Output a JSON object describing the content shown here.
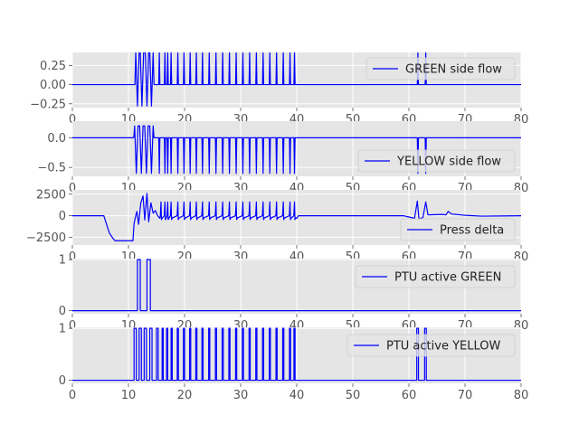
{
  "chart_data": [
    {
      "type": "line",
      "legend_position": "upper-right",
      "grid": true,
      "xlim": [
        0,
        80
      ],
      "ylim": [
        -0.3,
        0.42
      ],
      "xticks": [
        0,
        10,
        20,
        30,
        40,
        50,
        60,
        70,
        80
      ],
      "yticks": [
        0.25,
        0.0,
        -0.25
      ],
      "ytick_labels": [
        "0.25",
        "0.00",
        "−0.25"
      ],
      "series": [
        {
          "name": "GREEN side flow",
          "color": "#0000ff",
          "baseline": 0.0,
          "bursts": [
            {
              "center": 11.6,
              "low": -0.28,
              "high": 0.42
            },
            {
              "center": 12.4,
              "low": -0.28,
              "high": 0.42
            },
            {
              "center": 13.3,
              "low": -0.28,
              "high": 0.42
            },
            {
              "center": 14.1,
              "low": -0.28,
              "high": 0.42
            }
          ],
          "spike_times": [
            15.5,
            16.5,
            17.0,
            17.6,
            18.8,
            19.9,
            21.0,
            22.1,
            23.2,
            24.4,
            25.6,
            26.8,
            28.0,
            29.2,
            30.4,
            31.6,
            32.8,
            34.0,
            35.2,
            36.4,
            37.6,
            38.8,
            39.6,
            61.6,
            63.0
          ],
          "spike_value": 0.42
        }
      ]
    },
    {
      "type": "line",
      "legend_position": "lower-right",
      "grid": true,
      "xlim": [
        0,
        80
      ],
      "ylim": [
        -0.65,
        0.28
      ],
      "xticks": [
        0,
        10,
        20,
        30,
        40,
        50,
        60,
        70,
        80
      ],
      "yticks": [
        0.0,
        -0.5
      ],
      "ytick_labels": [
        "0.0",
        "−0.5"
      ],
      "series": [
        {
          "name": "YELLOW side flow",
          "color": "#0000ff",
          "baseline": 0.0,
          "bursts": [
            {
              "center": 11.4,
              "low": -0.6,
              "high": 0.2
            },
            {
              "center": 12.3,
              "low": -0.6,
              "high": 0.2
            },
            {
              "center": 13.2,
              "low": -0.6,
              "high": 0.2
            },
            {
              "center": 14.1,
              "low": -0.6,
              "high": 0.2
            }
          ],
          "spike_times": [
            15.5,
            16.5,
            17.0,
            17.6,
            18.8,
            19.9,
            21.0,
            22.1,
            23.2,
            24.4,
            25.6,
            26.8,
            28.0,
            29.2,
            30.4,
            31.6,
            32.8,
            34.0,
            35.2,
            36.4,
            37.6,
            38.8,
            39.6,
            61.6,
            63.0
          ],
          "spike_value": -0.6
        }
      ]
    },
    {
      "type": "line",
      "legend_position": "lower-right",
      "grid": true,
      "xlim": [
        0,
        80
      ],
      "ylim": [
        -3400,
        3000
      ],
      "xticks": [
        0,
        10,
        20,
        30,
        40,
        50,
        60,
        70,
        80
      ],
      "yticks": [
        2500,
        0,
        -2500
      ],
      "ytick_labels": [
        "2500",
        "0",
        "−2500"
      ],
      "series": [
        {
          "name": "Press delta",
          "color": "#0000ff",
          "points": [
            [
              0,
              0
            ],
            [
              5.6,
              0
            ],
            [
              6.0,
              -800
            ],
            [
              6.6,
              -2000
            ],
            [
              7.2,
              -2600
            ],
            [
              7.6,
              -2900
            ],
            [
              9.0,
              -2900
            ],
            [
              10.8,
              -2900
            ],
            [
              11.0,
              -900
            ],
            [
              11.3,
              0
            ],
            [
              11.5,
              500
            ],
            [
              11.8,
              -1000
            ],
            [
              12.2,
              1500
            ],
            [
              12.6,
              2300
            ],
            [
              12.9,
              -500
            ],
            [
              13.3,
              2600
            ],
            [
              13.6,
              -700
            ],
            [
              14.0,
              1500
            ],
            [
              14.4,
              300
            ],
            [
              14.8,
              600
            ],
            [
              15.2,
              0
            ],
            [
              15.6,
              -300
            ]
          ],
          "spike_times": [
            15.8,
            16.5,
            17.0,
            17.6,
            18.8,
            19.9,
            21.0,
            22.1,
            23.2,
            24.4,
            25.6,
            26.8,
            28.0,
            29.2,
            30.4,
            31.6,
            32.8,
            34.0,
            35.2,
            36.4,
            37.6,
            38.8,
            39.6
          ],
          "spike_high": 1600,
          "spike_low": -450,
          "tail": [
            [
              40.0,
              -300
            ],
            [
              40.3,
              0
            ],
            [
              59.0,
              0
            ],
            [
              60.0,
              -150
            ],
            [
              61.0,
              -300
            ],
            [
              61.5,
              1700
            ],
            [
              61.8,
              -400
            ],
            [
              62.5,
              -200
            ],
            [
              63.0,
              1600
            ],
            [
              63.4,
              100
            ],
            [
              66.0,
              150
            ],
            [
              66.6,
              100
            ],
            [
              67.0,
              500
            ],
            [
              67.6,
              200
            ],
            [
              70.0,
              50
            ],
            [
              73.0,
              -50
            ],
            [
              76.0,
              -30
            ],
            [
              80,
              0
            ]
          ]
        }
      ]
    },
    {
      "type": "line",
      "legend_position": "upper-right",
      "grid": true,
      "xlim": [
        0,
        80
      ],
      "ylim": [
        -0.06,
        1.02
      ],
      "xticks": [
        0,
        10,
        20,
        30,
        40,
        50,
        60,
        70,
        80
      ],
      "yticks": [
        1,
        0
      ],
      "ytick_labels": [
        "1",
        "0"
      ],
      "series": [
        {
          "name": "PTU active GREEN",
          "color": "#0000ff",
          "pulses": [
            [
              11.6,
              12.1
            ],
            [
              13.3,
              13.9
            ]
          ],
          "high": 1.0,
          "low": 0.0
        }
      ]
    },
    {
      "type": "line",
      "legend_position": "upper-right",
      "grid": true,
      "xlim": [
        0,
        80
      ],
      "ylim": [
        -0.06,
        1.02
      ],
      "xticks": [
        0,
        10,
        20,
        30,
        40,
        50,
        60,
        70,
        80
      ],
      "yticks": [
        1,
        0
      ],
      "ytick_labels": [
        "1",
        "0"
      ],
      "series": [
        {
          "name": "PTU active YELLOW",
          "color": "#0000ff",
          "pulses": [
            [
              11.0,
              11.4
            ],
            [
              11.9,
              12.3
            ],
            [
              12.8,
              13.2
            ],
            [
              13.8,
              14.2
            ],
            [
              15.0,
              15.3
            ],
            [
              16.0,
              16.2
            ],
            [
              16.8,
              17.0
            ],
            [
              17.6,
              17.8
            ],
            [
              18.7,
              18.9
            ],
            [
              19.8,
              20.0
            ],
            [
              20.9,
              21.1
            ],
            [
              22.0,
              22.2
            ],
            [
              23.1,
              23.3
            ],
            [
              24.3,
              24.5
            ],
            [
              25.5,
              25.7
            ],
            [
              26.7,
              26.9
            ],
            [
              27.9,
              28.1
            ],
            [
              29.1,
              29.3
            ],
            [
              30.3,
              30.5
            ],
            [
              31.5,
              31.7
            ],
            [
              32.7,
              32.9
            ],
            [
              33.9,
              34.1
            ],
            [
              35.1,
              35.3
            ],
            [
              36.3,
              36.5
            ],
            [
              37.5,
              37.7
            ],
            [
              38.7,
              38.9
            ],
            [
              39.5,
              39.7
            ],
            [
              61.4,
              61.7
            ],
            [
              62.8,
              63.1
            ]
          ],
          "high": 1.0,
          "low": 0.0
        }
      ]
    }
  ]
}
